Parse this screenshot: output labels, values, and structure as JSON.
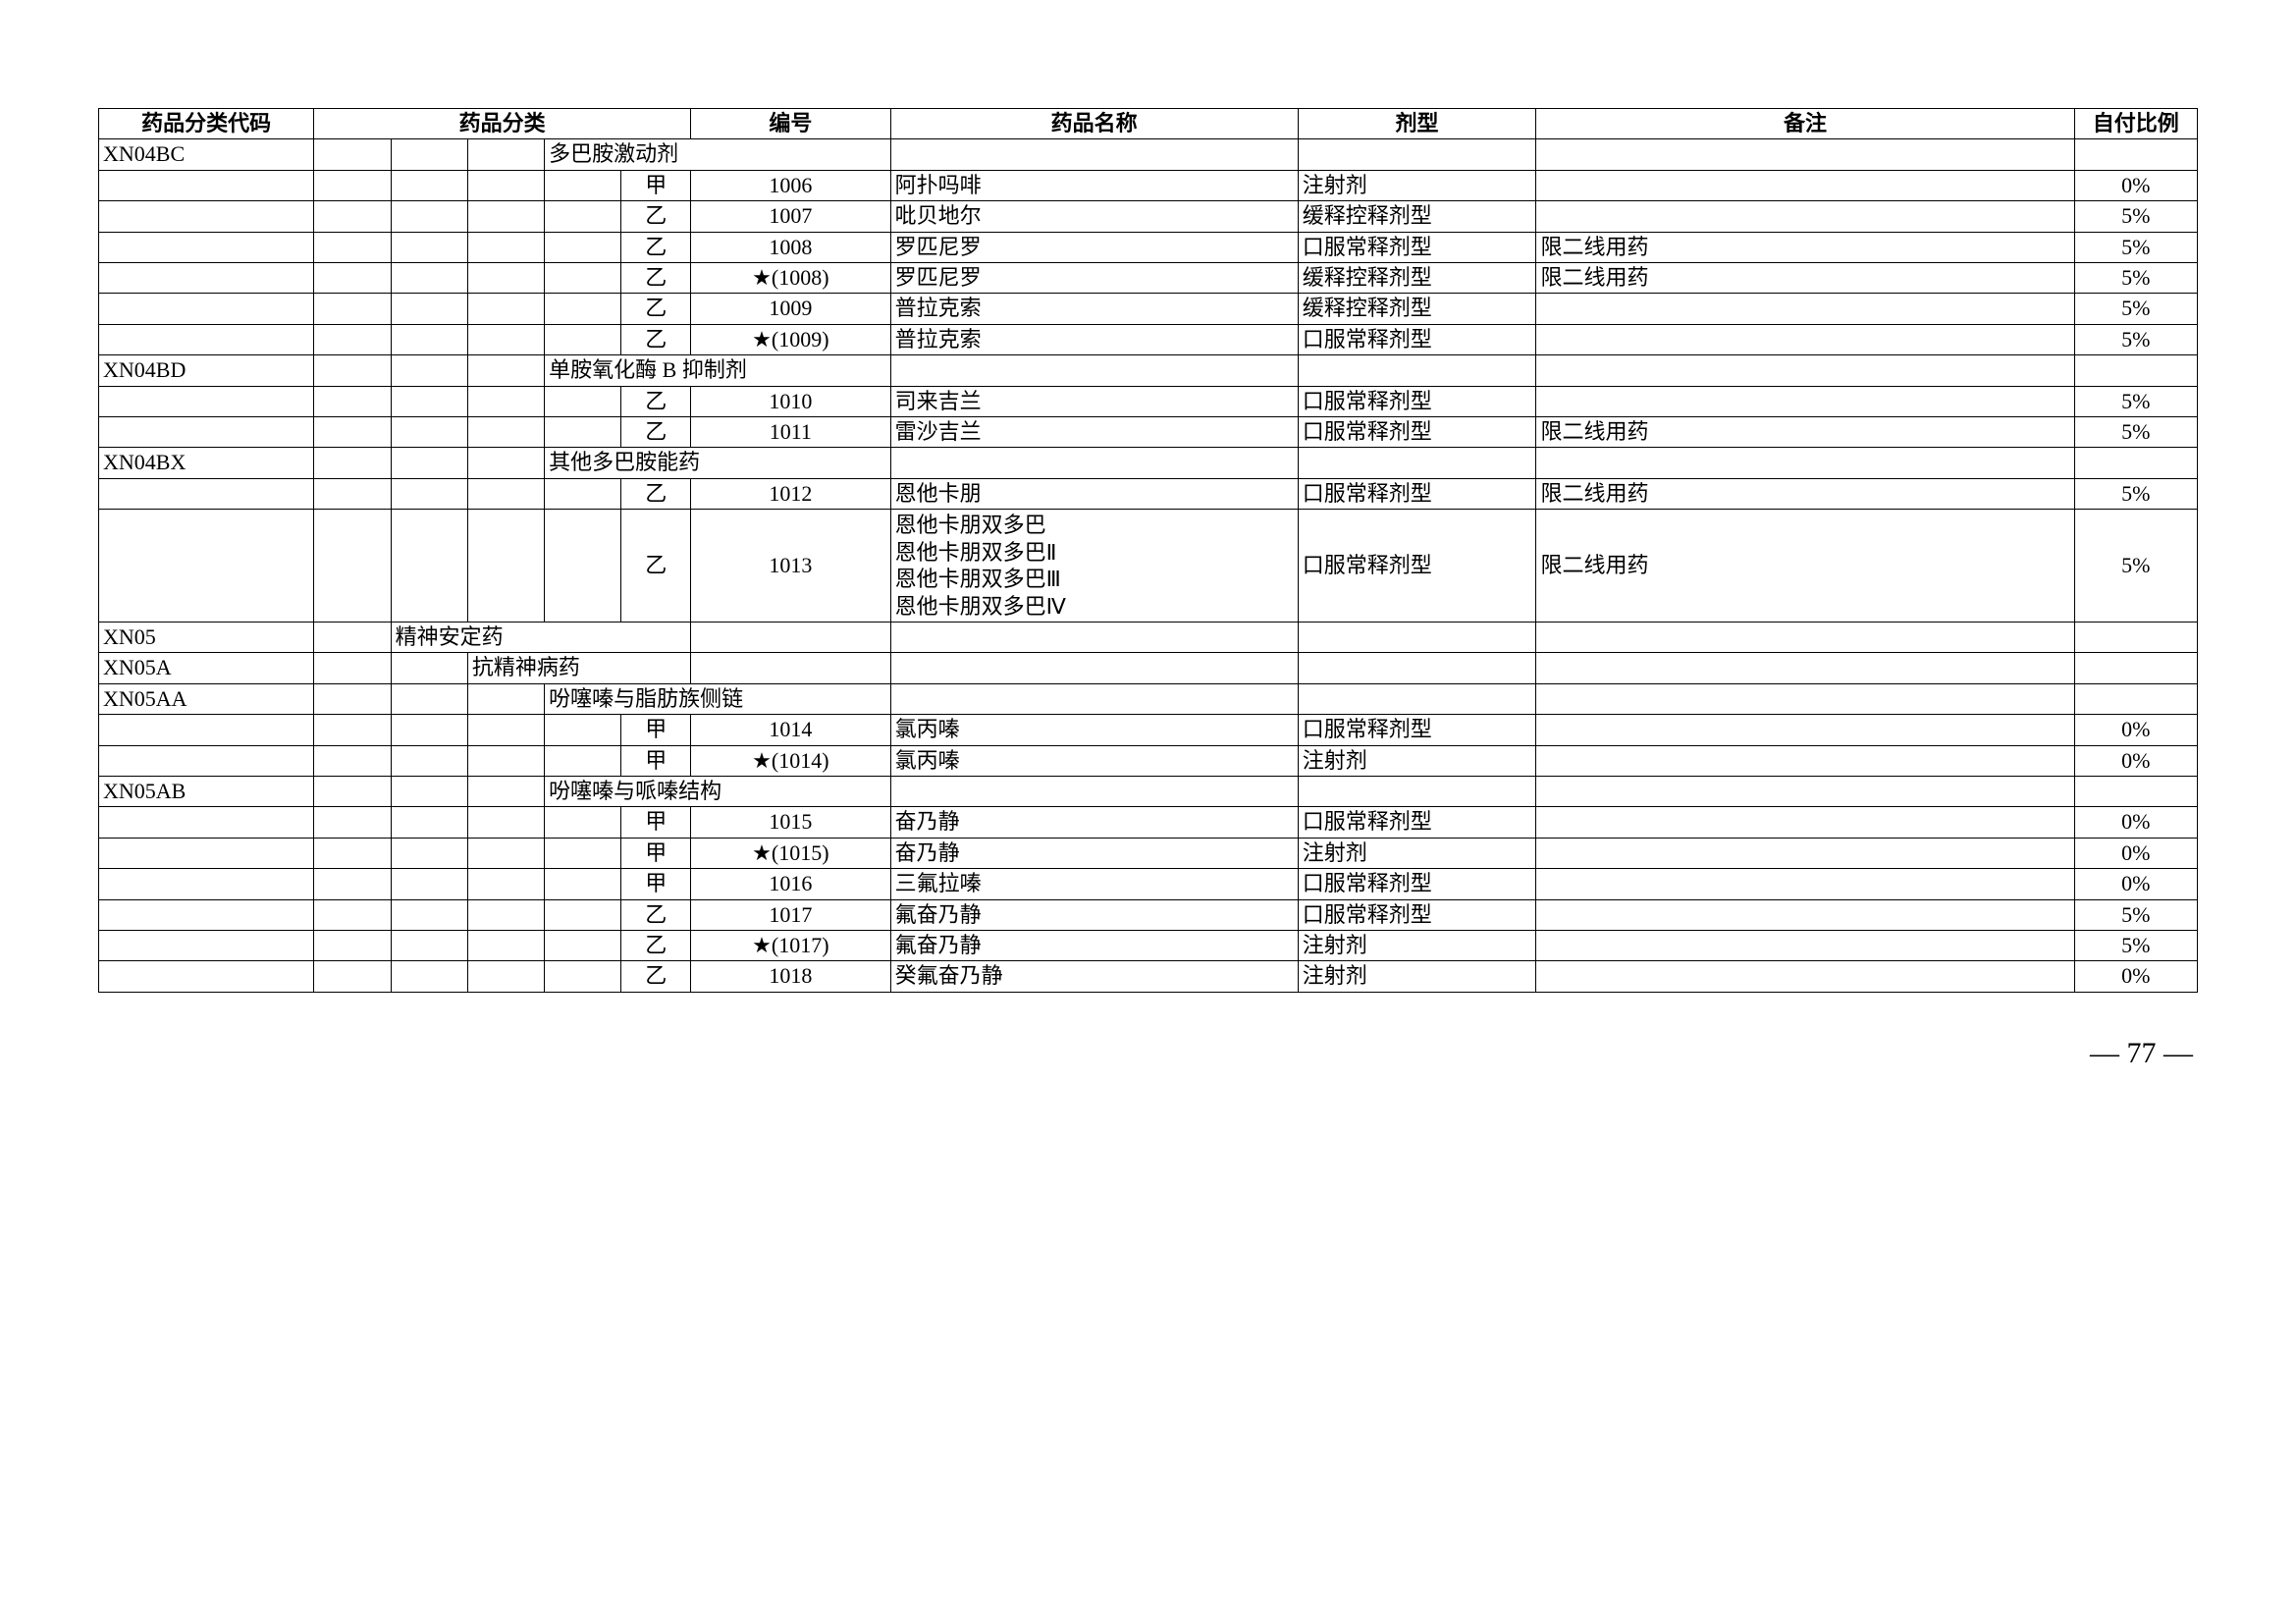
{
  "headers": {
    "code": "药品分类代码",
    "category": "药品分类",
    "number": "编号",
    "name": "药品名称",
    "form": "剂型",
    "remark": "备注",
    "ratio": "自付比例"
  },
  "rows": [
    {
      "code": "XN04BC",
      "cat4": "多巴胺激动剂"
    },
    {
      "level": "甲",
      "number": "1006",
      "name": "阿扑吗啡",
      "form": "注射剂",
      "remark": "",
      "ratio": "0%"
    },
    {
      "level": "乙",
      "number": "1007",
      "name": "吡贝地尔",
      "form": "缓释控释剂型",
      "remark": "",
      "ratio": "5%"
    },
    {
      "level": "乙",
      "number": "1008",
      "name": "罗匹尼罗",
      "form": "口服常释剂型",
      "remark": "限二线用药",
      "ratio": "5%"
    },
    {
      "level": "乙",
      "number": "★(1008)",
      "name": "罗匹尼罗",
      "form": "缓释控释剂型",
      "remark": "限二线用药",
      "ratio": "5%"
    },
    {
      "level": "乙",
      "number": "1009",
      "name": "普拉克索",
      "form": "缓释控释剂型",
      "remark": "",
      "ratio": "5%"
    },
    {
      "level": "乙",
      "number": "★(1009)",
      "name": "普拉克索",
      "form": "口服常释剂型",
      "remark": "",
      "ratio": "5%"
    },
    {
      "code": "XN04BD",
      "cat4": "单胺氧化酶 B 抑制剂"
    },
    {
      "level": "乙",
      "number": "1010",
      "name": "司来吉兰",
      "form": "口服常释剂型",
      "remark": "",
      "ratio": "5%"
    },
    {
      "level": "乙",
      "number": "1011",
      "name": "雷沙吉兰",
      "form": "口服常释剂型",
      "remark": "限二线用药",
      "ratio": "5%"
    },
    {
      "code": "XN04BX",
      "cat4": "其他多巴胺能药"
    },
    {
      "level": "乙",
      "number": "1012",
      "name": "恩他卡朋",
      "form": "口服常释剂型",
      "remark": "限二线用药",
      "ratio": "5%"
    },
    {
      "level": "乙",
      "number": "1013",
      "name": "恩他卡朋双多巴\n恩他卡朋双多巴Ⅱ\n恩他卡朋双多巴Ⅲ\n恩他卡朋双多巴Ⅳ",
      "form": "口服常释剂型",
      "remark": "限二线用药",
      "ratio": "5%",
      "multiline": true
    },
    {
      "code": "XN05",
      "cat2": "精神安定药"
    },
    {
      "code": "XN05A",
      "cat3": "抗精神病药"
    },
    {
      "code": "XN05AA",
      "cat4": "吩噻嗪与脂肪族侧链"
    },
    {
      "level": "甲",
      "number": "1014",
      "name": "氯丙嗪",
      "form": "口服常释剂型",
      "remark": "",
      "ratio": "0%"
    },
    {
      "level": "甲",
      "number": "★(1014)",
      "name": "氯丙嗪",
      "form": "注射剂",
      "remark": "",
      "ratio": "0%"
    },
    {
      "code": "XN05AB",
      "cat4": "吩噻嗪与哌嗪结构"
    },
    {
      "level": "甲",
      "number": "1015",
      "name": "奋乃静",
      "form": "口服常释剂型",
      "remark": "",
      "ratio": "0%"
    },
    {
      "level": "甲",
      "number": "★(1015)",
      "name": "奋乃静",
      "form": "注射剂",
      "remark": "",
      "ratio": "0%"
    },
    {
      "level": "甲",
      "number": "1016",
      "name": "三氟拉嗪",
      "form": "口服常释剂型",
      "remark": "",
      "ratio": "0%"
    },
    {
      "level": "乙",
      "number": "1017",
      "name": "氟奋乃静",
      "form": "口服常释剂型",
      "remark": "",
      "ratio": "5%"
    },
    {
      "level": "乙",
      "number": "★(1017)",
      "name": "氟奋乃静",
      "form": "注射剂",
      "remark": "",
      "ratio": "5%"
    },
    {
      "level": "乙",
      "number": "1018",
      "name": "癸氟奋乃静",
      "form": "注射剂",
      "remark": "",
      "ratio": "0%"
    }
  ],
  "page_number": "— 77 —"
}
